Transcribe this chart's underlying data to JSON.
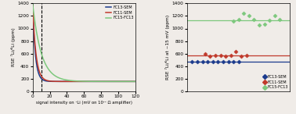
{
  "left_panel": {
    "xlabel": "signal intensity on ⁷Li (mV on 10¹¹ Ω amplifier)",
    "ylabel": "RSE ⁷Li/⁶Li (ppm)",
    "xlim": [
      0,
      120
    ],
    "ylim": [
      0,
      1400
    ],
    "yticks": [
      0,
      200,
      400,
      600,
      800,
      1000,
      1200,
      1400
    ],
    "xticks": [
      0,
      20,
      40,
      60,
      80,
      100,
      120
    ],
    "dashed_x": 10,
    "curves": {
      "FC13_SEM": {
        "color": "#1a3a8c",
        "a": 1250,
        "b": 0.32,
        "floor": 155
      },
      "FC11_SEM": {
        "color": "#c0392b",
        "a": 1250,
        "b": 0.26,
        "floor": 155
      },
      "FC15_FC13": {
        "color": "#7dc87d",
        "a": 1250,
        "b": 0.1,
        "floor": 155
      }
    },
    "legend": [
      "FC13-SEM",
      "FC11-SEM",
      "FC15-FC13"
    ]
  },
  "right_panel": {
    "ylabel": "RSE ⁷Li/⁶Li at ~15 mV (ppm)",
    "ylim": [
      0,
      1400
    ],
    "yticks": [
      0,
      200,
      400,
      600,
      800,
      1000,
      1200,
      1400
    ],
    "hlines": {
      "FC13_SEM": {
        "y": 470,
        "color": "#1a3a8c"
      },
      "FC11_SEM": {
        "y": 565,
        "color": "#c0392b"
      },
      "FC15_FC13": {
        "y": 1130,
        "color": "#7dc87d"
      }
    },
    "scatter": {
      "FC13_SEM": {
        "color": "#1a3a8c",
        "x": [
          1,
          2,
          3,
          4,
          5,
          6,
          7,
          8,
          9,
          10
        ],
        "y": [
          470,
          472,
          468,
          465,
          475,
          470,
          469,
          472,
          468,
          470
        ]
      },
      "FC11_SEM": {
        "color": "#c0392b",
        "x": [
          3.5,
          4.5,
          5.5,
          6.5,
          7.5,
          8.5,
          9.5,
          10.5,
          11.5
        ],
        "y": [
          595,
          555,
          565,
          570,
          560,
          575,
          630,
          555,
          565
        ]
      },
      "FC15_FC13": {
        "color": "#7dc87d",
        "x": [
          9,
          10,
          11,
          12,
          13,
          14,
          15,
          16,
          17,
          18
        ],
        "y": [
          1120,
          1145,
          1240,
          1200,
          1140,
          1060,
          1070,
          1130,
          1210,
          1140
        ]
      }
    },
    "legend": [
      "FC13-SEM",
      "FC11-SEM",
      "FC15-FC13"
    ]
  },
  "bg_color": "#f0ece8"
}
